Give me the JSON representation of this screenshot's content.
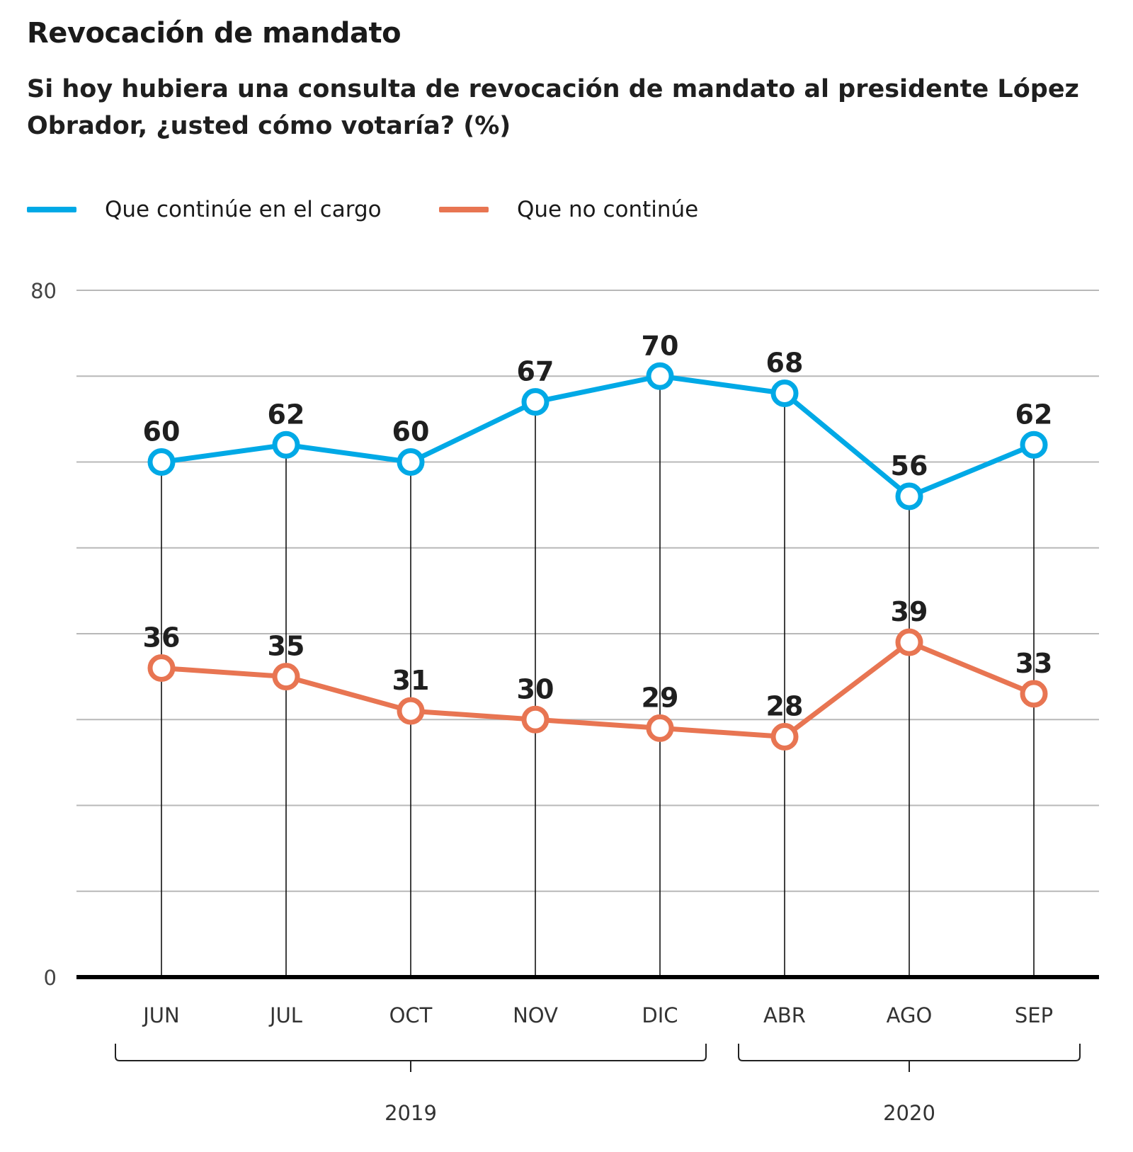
{
  "chart_data": {
    "type": "line",
    "title": "Revocación de mandato",
    "subtitle": "Si hoy hubiera una consulta de revocación de mandato al presidente López Obrador, ¿usted cómo votaría?  (%)",
    "categories": [
      "JUN",
      "JUL",
      "OCT",
      "NOV",
      "DIC",
      "ABR",
      "AGO",
      "SEP"
    ],
    "year_groups": [
      {
        "label": "2019",
        "categories": [
          "JUN",
          "JUL",
          "OCT",
          "NOV",
          "DIC"
        ]
      },
      {
        "label": "2020",
        "categories": [
          "ABR",
          "AGO",
          "SEP"
        ]
      }
    ],
    "series": [
      {
        "name": "Que continúe en el cargo",
        "color": "#00a9e6",
        "values": [
          60,
          62,
          60,
          67,
          70,
          68,
          56,
          62
        ]
      },
      {
        "name": "Que no continúe",
        "color": "#e87552",
        "values": [
          36,
          35,
          31,
          30,
          29,
          28,
          39,
          33
        ]
      }
    ],
    "ylim": [
      0,
      80
    ],
    "y_tick_labels": [
      "0",
      "80"
    ],
    "y_gridlines": [
      10,
      20,
      30,
      40,
      50,
      60,
      70,
      80
    ],
    "grid": true,
    "legend_position": "top-left",
    "xlabel": "",
    "ylabel": ""
  }
}
